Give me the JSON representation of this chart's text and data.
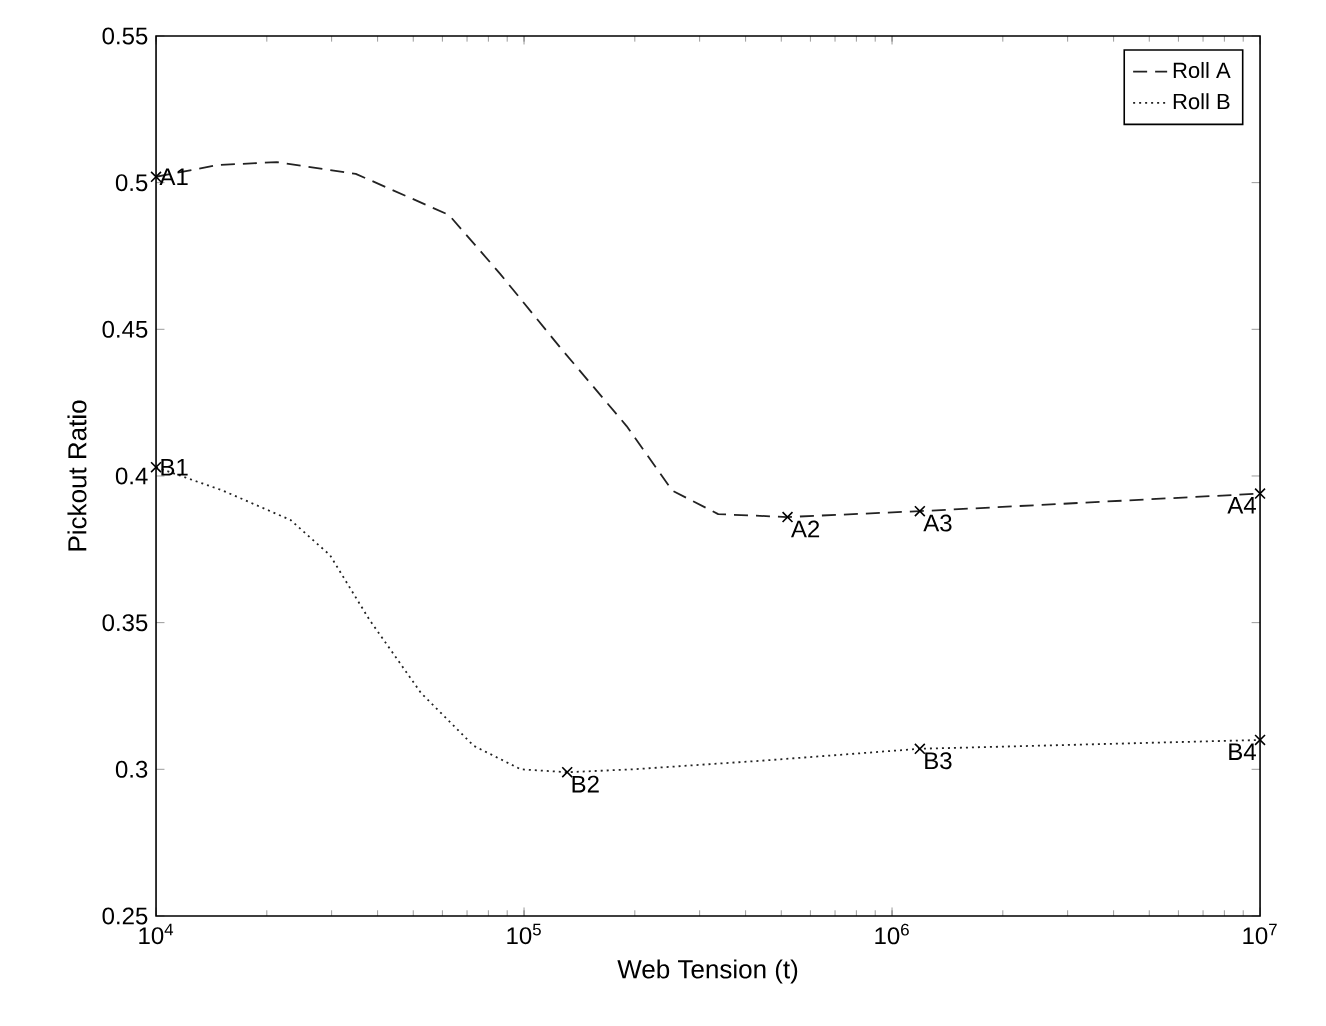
{
  "chart_data": {
    "type": "line",
    "xlabel": "Web Tension (t)",
    "ylabel": "Pickout Ratio",
    "log": "x",
    "xlim": [
      10000,
      10000000
    ],
    "ylim": [
      0.25,
      0.55
    ],
    "xticks": [
      {
        "value": 10000,
        "label": "10$^{4}$"
      },
      {
        "value": 100000,
        "label": "10$^{5}$"
      },
      {
        "value": 1000000,
        "label": "10$^{6}$"
      },
      {
        "value": 10000000,
        "label": "10$^{7}$"
      }
    ],
    "yticks": [
      0.25,
      0.3,
      0.35,
      0.4,
      0.45,
      0.5,
      0.55
    ],
    "grid": false,
    "legend": "top right",
    "series": [
      {
        "name": "Roll A",
        "color": "#222222",
        "line_style": "dashed",
        "marker": "none",
        "x": [
          10000,
          14700,
          21300,
          34900,
          62500,
          86000,
          125000,
          190000,
          253000,
          337000,
          520000,
          1190000,
          10000000
        ],
        "values": [
          0.502,
          0.506,
          0.507,
          0.503,
          0.489,
          0.469,
          0.444,
          0.417,
          0.395,
          0.387,
          0.386,
          0.388,
          0.394
        ]
      },
      {
        "name": "Roll B",
        "color": "#222222",
        "line_style": "dotted",
        "marker": "none",
        "x": [
          10000,
          15200,
          23200,
          29700,
          38000,
          52500,
          73000,
          98000,
          131000,
          198000,
          450000,
          1190000,
          10000000
        ],
        "values": [
          0.403,
          0.395,
          0.385,
          0.373,
          0.351,
          0.326,
          0.308,
          0.3,
          0.299,
          0.3,
          0.303,
          0.307,
          0.31
        ]
      },
      {
        "type": "scatter",
        "color": "#000000",
        "marker": "cross",
        "x": [
          10000,
          520000,
          1190000,
          10000000
        ],
        "values": [
          0.502,
          0.386,
          0.388,
          0.394
        ]
      },
      {
        "type": "scatter",
        "color": "#000000",
        "marker": "cross",
        "x": [
          10000,
          131000,
          1190000,
          10000000
        ],
        "values": [
          0.403,
          0.299,
          0.307,
          0.31
        ]
      }
    ],
    "annotations": [
      {
        "text": "A1",
        "x": 10000,
        "y": 0.502
      },
      {
        "text": "A2",
        "x": 520000,
        "y": 0.386
      },
      {
        "text": "A3",
        "x": 1190000,
        "y": 0.388
      },
      {
        "text": "A4",
        "x": 10000000,
        "y": 0.394
      },
      {
        "text": "B1",
        "x": 10000,
        "y": 0.403
      },
      {
        "text": "B2",
        "x": 131000,
        "y": 0.299
      },
      {
        "text": "B3",
        "x": 1190000,
        "y": 0.307
      },
      {
        "text": "B4",
        "x": 10000000,
        "y": 0.31
      }
    ]
  }
}
